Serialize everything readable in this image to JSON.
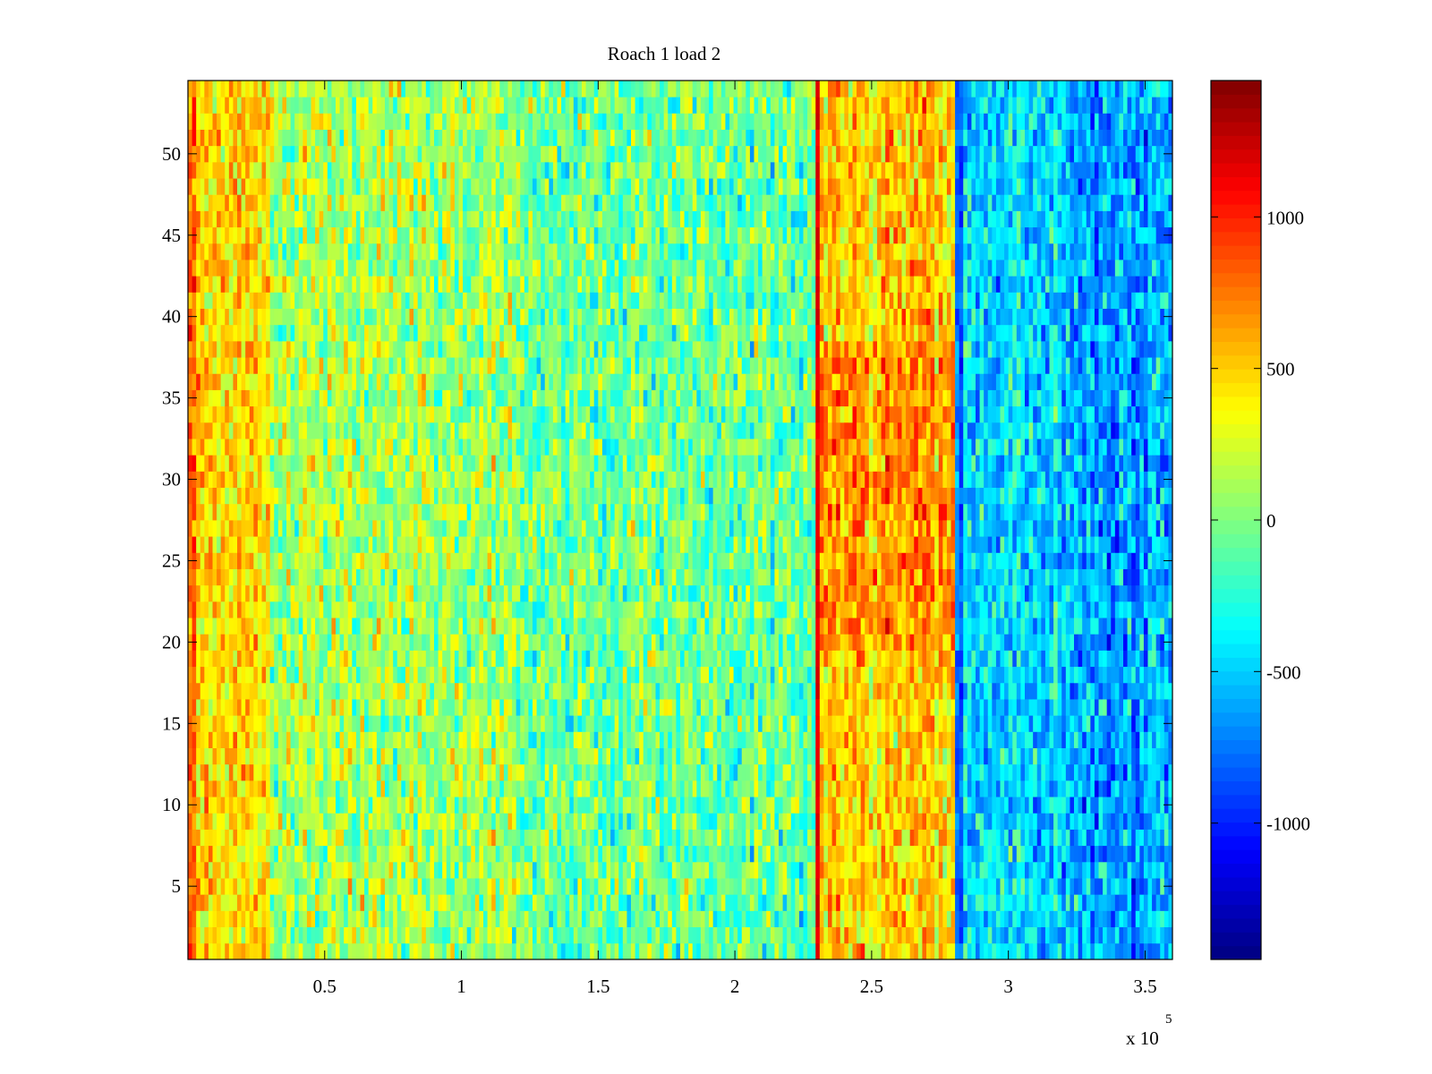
{
  "chart_data": {
    "type": "heatmap",
    "title": "Roach 1 load 2",
    "xlabel": "",
    "ylabel": "",
    "x_exponent_label": "x 10",
    "x_exponent": "5",
    "xlim": [
      0,
      360000
    ],
    "ylim": [
      0.5,
      54.5
    ],
    "x_ticks": [
      {
        "value": 50000,
        "label": "0.5"
      },
      {
        "value": 100000,
        "label": "1"
      },
      {
        "value": 150000,
        "label": "1.5"
      },
      {
        "value": 200000,
        "label": "2"
      },
      {
        "value": 250000,
        "label": "2.5"
      },
      {
        "value": 300000,
        "label": "3"
      },
      {
        "value": 350000,
        "label": "3.5"
      }
    ],
    "y_ticks": [
      {
        "value": 5,
        "label": "5"
      },
      {
        "value": 10,
        "label": "10"
      },
      {
        "value": 15,
        "label": "15"
      },
      {
        "value": 20,
        "label": "20"
      },
      {
        "value": 25,
        "label": "25"
      },
      {
        "value": 30,
        "label": "30"
      },
      {
        "value": 35,
        "label": "35"
      },
      {
        "value": 40,
        "label": "40"
      },
      {
        "value": 45,
        "label": "45"
      },
      {
        "value": 50,
        "label": "50"
      }
    ],
    "colorbar": {
      "colormap": "jet",
      "clim": [
        -1450,
        1450
      ],
      "ticks": [
        {
          "value": 1000,
          "label": "1000"
        },
        {
          "value": 500,
          "label": "500"
        },
        {
          "value": 0,
          "label": "0"
        },
        {
          "value": -500,
          "label": "-500"
        },
        {
          "value": -1000,
          "label": "-1000"
        }
      ]
    },
    "rows": 54,
    "column_step": 1500,
    "region_means": [
      {
        "x_start": 0,
        "x_end": 3000,
        "mean": 750,
        "spread": 250
      },
      {
        "x_start": 3000,
        "x_end": 30000,
        "mean": 450,
        "spread": 250
      },
      {
        "x_start": 30000,
        "x_end": 120000,
        "mean": 120,
        "spread": 300
      },
      {
        "x_start": 120000,
        "x_end": 229000,
        "mean": -50,
        "spread": 300
      },
      {
        "x_start": 229000,
        "x_end": 231000,
        "mean": 1150,
        "spread": 80
      },
      {
        "x_start": 231000,
        "x_end": 281000,
        "mean": 500,
        "spread": 280
      },
      {
        "x_start": 281000,
        "x_end": 283000,
        "mean": -800,
        "spread": 150
      },
      {
        "x_start": 283000,
        "x_end": 320000,
        "mean": -450,
        "spread": 280
      },
      {
        "x_start": 320000,
        "x_end": 360000,
        "mean": -600,
        "spread": 300
      }
    ],
    "band_boost": {
      "x_start": 231000,
      "x_end": 281000,
      "y_start": 20,
      "y_end": 38,
      "delta": 180
    }
  }
}
